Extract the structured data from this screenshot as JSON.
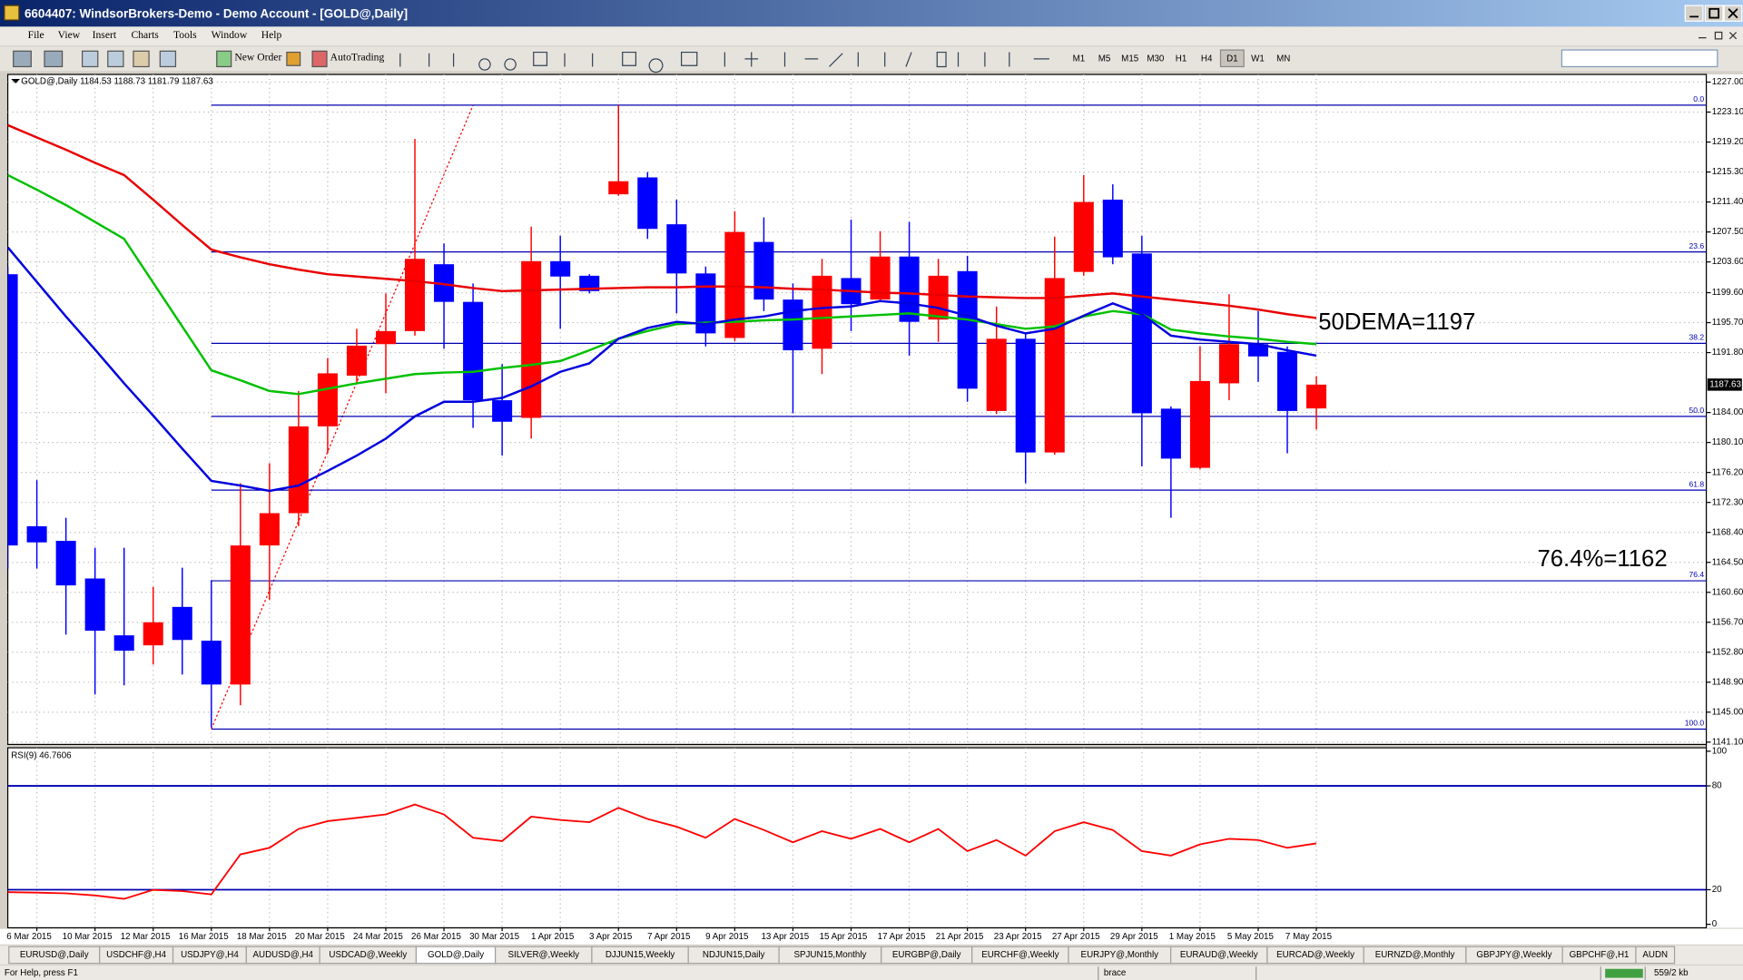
{
  "window": {
    "title": "6604407: WindsorBrokers-Demo - Demo Account - [GOLD@,Daily]"
  },
  "menu": [
    "File",
    "View",
    "Insert",
    "Charts",
    "Tools",
    "Window",
    "Help"
  ],
  "toolbar": {
    "new_order": "New Order",
    "autotrading": "AutoTrading",
    "timeframes": [
      {
        "label": "M1"
      },
      {
        "label": "M5"
      },
      {
        "label": "M15"
      },
      {
        "label": "M30"
      },
      {
        "label": "H1"
      },
      {
        "label": "H4"
      },
      {
        "label": "D1",
        "active": true
      },
      {
        "label": "W1"
      },
      {
        "label": "MN"
      }
    ]
  },
  "chart": {
    "type": "candlestick",
    "symbol": "GOLD@,Daily",
    "bull_color": "#ff0000",
    "bear_color": "#0000ff",
    "ylim": [
      1140.8,
      1228.0
    ],
    "yticks": [
      {
        "value": 1227.0,
        "label": "1227.00"
      },
      {
        "value": 1223.1,
        "label": "1223.10"
      },
      {
        "value": 1219.2,
        "label": "1219.20"
      },
      {
        "value": 1215.3,
        "label": "1215.30"
      },
      {
        "value": 1211.4,
        "label": "1211.40"
      },
      {
        "value": 1207.5,
        "label": "1207.50"
      },
      {
        "value": 1203.6,
        "label": "1203.60"
      },
      {
        "value": 1199.6,
        "label": "1199.60"
      },
      {
        "value": 1195.7,
        "label": "1195.70"
      },
      {
        "value": 1191.8,
        "label": "1191.80"
      },
      {
        "value": 1184.0,
        "label": "1184.00"
      },
      {
        "value": 1180.1,
        "label": "1180.10"
      },
      {
        "value": 1176.2,
        "label": "1176.20"
      },
      {
        "value": 1172.3,
        "label": "1172.30"
      },
      {
        "value": 1168.4,
        "label": "1168.40"
      },
      {
        "value": 1164.5,
        "label": "1164.50"
      },
      {
        "value": 1160.6,
        "label": "1160.60"
      },
      {
        "value": 1156.7,
        "label": "1156.70"
      },
      {
        "value": 1152.8,
        "label": "1152.80"
      },
      {
        "value": 1148.9,
        "label": "1148.90"
      },
      {
        "value": 1145.0,
        "label": "1145.00"
      },
      {
        "value": 1141.1,
        "label": "1141.10"
      }
    ],
    "grid": true,
    "date_labels": [
      "6 Mar 2015",
      "10 Mar 2015",
      "12 Mar 2015",
      "16 Mar 2015",
      "18 Mar 2015",
      "20 Mar 2015",
      "24 Mar 2015",
      "26 Mar 2015",
      "30 Mar 2015",
      "1 Apr 2015",
      "3 Apr 2015",
      "7 Apr 2015",
      "9 Apr 2015",
      "13 Apr 2015",
      "15 Apr 2015",
      "17 Apr 2015",
      "21 Apr 2015",
      "23 Apr 2015",
      "27 Apr 2015",
      "29 Apr 2015",
      "1 May 2015",
      "5 May 2015",
      "7 May 2015"
    ],
    "candles": [
      {
        "o": 1202.0,
        "h": 1203.0,
        "l": 1163.7,
        "c": 1166.7
      },
      {
        "o": 1169.2,
        "h": 1175.2,
        "l": 1163.7,
        "c": 1167.1
      },
      {
        "o": 1167.3,
        "h": 1170.3,
        "l": 1155.1,
        "c": 1161.5
      },
      {
        "o": 1162.4,
        "h": 1166.4,
        "l": 1147.3,
        "c": 1155.6
      },
      {
        "o": 1155.0,
        "h": 1166.4,
        "l": 1148.5,
        "c": 1153.0
      },
      {
        "o": 1153.7,
        "h": 1161.3,
        "l": 1151.2,
        "c": 1156.7
      },
      {
        "o": 1158.7,
        "h": 1163.8,
        "l": 1149.9,
        "c": 1154.4
      },
      {
        "o": 1154.3,
        "h": 1162.2,
        "l": 1143.0,
        "c": 1148.6
      },
      {
        "o": 1148.6,
        "h": 1174.8,
        "l": 1145.9,
        "c": 1166.7
      },
      {
        "o": 1166.7,
        "h": 1177.4,
        "l": 1159.6,
        "c": 1170.9
      },
      {
        "o": 1170.9,
        "h": 1186.8,
        "l": 1169.2,
        "c": 1182.2
      },
      {
        "o": 1182.2,
        "h": 1191.1,
        "l": 1178.7,
        "c": 1189.1
      },
      {
        "o": 1188.8,
        "h": 1194.9,
        "l": 1187.8,
        "c": 1192.7
      },
      {
        "o": 1192.9,
        "h": 1199.5,
        "l": 1186.5,
        "c": 1194.6
      },
      {
        "o": 1194.6,
        "h": 1219.6,
        "l": 1194.0,
        "c": 1204.0
      },
      {
        "o": 1203.3,
        "h": 1206.0,
        "l": 1192.3,
        "c": 1198.4
      },
      {
        "o": 1198.4,
        "h": 1200.8,
        "l": 1182.0,
        "c": 1185.6
      },
      {
        "o": 1185.6,
        "h": 1190.3,
        "l": 1178.4,
        "c": 1182.8
      },
      {
        "o": 1183.3,
        "h": 1208.2,
        "l": 1180.6,
        "c": 1203.7
      },
      {
        "o": 1203.7,
        "h": 1207.0,
        "l": 1194.9,
        "c": 1201.7
      },
      {
        "o": 1201.8,
        "h": 1202.0,
        "l": 1199.5,
        "c": 1199.8
      },
      {
        "o": 1212.4,
        "h": 1224.0,
        "l": 1212.2,
        "c": 1214.1
      },
      {
        "o": 1214.6,
        "h": 1215.3,
        "l": 1206.6,
        "c": 1207.9
      },
      {
        "o": 1208.5,
        "h": 1211.7,
        "l": 1196.9,
        "c": 1202.1
      },
      {
        "o": 1202.1,
        "h": 1203.0,
        "l": 1192.6,
        "c": 1194.3
      },
      {
        "o": 1193.7,
        "h": 1210.2,
        "l": 1193.3,
        "c": 1207.5
      },
      {
        "o": 1206.2,
        "h": 1209.4,
        "l": 1197.2,
        "c": 1198.7
      },
      {
        "o": 1198.7,
        "h": 1200.8,
        "l": 1183.9,
        "c": 1192.1
      },
      {
        "o": 1192.3,
        "h": 1204.0,
        "l": 1189.0,
        "c": 1201.8
      },
      {
        "o": 1201.5,
        "h": 1209.1,
        "l": 1194.6,
        "c": 1198.1
      },
      {
        "o": 1198.7,
        "h": 1207.6,
        "l": 1198.4,
        "c": 1204.3
      },
      {
        "o": 1204.3,
        "h": 1208.8,
        "l": 1191.4,
        "c": 1195.8
      },
      {
        "o": 1196.1,
        "h": 1204.0,
        "l": 1193.2,
        "c": 1201.8
      },
      {
        "o": 1202.4,
        "h": 1204.4,
        "l": 1185.4,
        "c": 1187.1
      },
      {
        "o": 1184.2,
        "h": 1197.8,
        "l": 1183.8,
        "c": 1193.6
      },
      {
        "o": 1193.6,
        "h": 1194.3,
        "l": 1174.8,
        "c": 1178.8
      },
      {
        "o": 1178.8,
        "h": 1206.9,
        "l": 1178.5,
        "c": 1201.5
      },
      {
        "o": 1202.3,
        "h": 1214.9,
        "l": 1201.8,
        "c": 1211.4
      },
      {
        "o": 1211.7,
        "h": 1213.7,
        "l": 1203.3,
        "c": 1204.2
      },
      {
        "o": 1204.7,
        "h": 1207.0,
        "l": 1177.0,
        "c": 1183.9
      },
      {
        "o": 1184.5,
        "h": 1184.8,
        "l": 1170.3,
        "c": 1178.0
      },
      {
        "o": 1176.8,
        "h": 1192.6,
        "l": 1176.6,
        "c": 1188.1
      },
      {
        "o": 1187.8,
        "h": 1199.4,
        "l": 1185.6,
        "c": 1192.9
      },
      {
        "o": 1192.9,
        "h": 1197.2,
        "l": 1188.0,
        "c": 1191.3
      },
      {
        "o": 1191.9,
        "h": 1192.6,
        "l": 1178.7,
        "c": 1184.2
      },
      {
        "o": 1184.53,
        "h": 1188.73,
        "l": 1181.79,
        "c": 1187.63
      }
    ],
    "moving_averages": [
      {
        "color": "#e80000",
        "values": [
          1221.4,
          1219.8,
          1218.2,
          1216.5,
          1214.9,
          1211.7,
          1208.4,
          1205.2,
          1204.2,
          1203.3,
          1202.6,
          1202.0,
          1201.7,
          1201.4,
          1201.1,
          1200.7,
          1200.2,
          1199.8,
          1199.9,
          1200.0,
          1200.1,
          1200.2,
          1200.3,
          1200.3,
          1200.4,
          1200.4,
          1200.3,
          1200.1,
          1200.0,
          1199.8,
          1199.6,
          1199.5,
          1199.3,
          1199.1,
          1199.0,
          1198.9,
          1198.9,
          1199.2,
          1199.5,
          1199.1,
          1198.7,
          1198.3,
          1197.9,
          1197.4,
          1196.8,
          1196.3
        ]
      },
      {
        "color": "#00c000",
        "values": [
          1214.9,
          1213.0,
          1211.0,
          1208.8,
          1206.6,
          1200.9,
          1195.2,
          1189.5,
          1188.2,
          1186.8,
          1186.4,
          1187.1,
          1187.8,
          1188.4,
          1189.0,
          1189.2,
          1189.3,
          1189.8,
          1190.2,
          1190.7,
          1192.1,
          1193.6,
          1194.6,
          1195.5,
          1195.7,
          1195.8,
          1196.0,
          1196.1,
          1196.3,
          1196.5,
          1196.7,
          1196.9,
          1196.5,
          1196.1,
          1195.5,
          1194.9,
          1195.2,
          1196.5,
          1197.2,
          1196.8,
          1194.8,
          1194.3,
          1193.9,
          1193.6,
          1193.2,
          1192.9
        ]
      },
      {
        "color": "#0000e0",
        "values": [
          1205.5,
          1201.0,
          1196.5,
          1192.2,
          1187.8,
          1183.6,
          1179.3,
          1175.1,
          1174.5,
          1173.8,
          1174.5,
          1176.4,
          1178.4,
          1180.6,
          1183.5,
          1185.4,
          1185.4,
          1185.9,
          1187.4,
          1189.3,
          1190.4,
          1193.6,
          1195.0,
          1195.8,
          1195.5,
          1196.1,
          1196.5,
          1197.2,
          1197.6,
          1197.8,
          1198.5,
          1198.2,
          1197.6,
          1196.6,
          1195.3,
          1194.3,
          1194.9,
          1196.6,
          1198.2,
          1196.8,
          1194.0,
          1193.5,
          1193.2,
          1192.9,
          1192.1,
          1191.4
        ]
      }
    ],
    "fibonacci": {
      "color": "#0000b0",
      "levels": [
        {
          "label": "0.0",
          "price": 1224.0
        },
        {
          "label": "23.6",
          "price": 1204.9
        },
        {
          "label": "38.2",
          "price": 1193.0
        },
        {
          "label": "50.0",
          "price": 1183.5
        },
        {
          "label": "61.8",
          "price": 1173.9
        },
        {
          "label": "76.4",
          "price": 1162.1
        },
        {
          "label": "100.0",
          "price": 1142.8
        }
      ]
    },
    "annotations": [
      "50DEMA=1197",
      "76.4%=1162"
    ]
  },
  "rsi": {
    "name": "RSI(9)",
    "color": "#ff0000",
    "level_color": "#0000b0",
    "ylim": [
      -2,
      102
    ],
    "yticks": [
      0,
      20,
      80,
      100
    ],
    "levels": [
      20,
      80
    ],
    "values": [
      18.6,
      18.3,
      17.9,
      16.7,
      14.7,
      19.9,
      19.2,
      17.3,
      40.4,
      44.2,
      55.1,
      59.6,
      61.5,
      63.5,
      69.2,
      63.5,
      50.0,
      48.1,
      62.2,
      60.3,
      59.0,
      67.3,
      60.9,
      56.4,
      50.0,
      60.9,
      54.5,
      47.4,
      53.8,
      49.4,
      55.1,
      47.4,
      55.1,
      42.3,
      48.7,
      39.7,
      53.8,
      59.0,
      54.5,
      42.3,
      39.7,
      46.2,
      49.4,
      48.7,
      44.2,
      46.7606
    ]
  },
  "tabs": [
    {
      "label": "EURUSD@,Daily"
    },
    {
      "label": "USDCHF@,H4"
    },
    {
      "label": "USDJPY@,H4"
    },
    {
      "label": "AUDUSD@,H4"
    },
    {
      "label": "USDCAD@,Weekly"
    },
    {
      "label": "GOLD@,Daily",
      "active": true
    },
    {
      "label": "SILVER@,Weekly"
    },
    {
      "label": "DJJUN15,Weekly"
    },
    {
      "label": "NDJUN15,Daily"
    },
    {
      "label": "SPJUN15,Monthly"
    },
    {
      "label": "EURGBP@,Daily"
    },
    {
      "label": "EURCHF@,Weekly"
    },
    {
      "label": "EURJPY@,Monthly"
    },
    {
      "label": "EURAUD@,Weekly"
    },
    {
      "label": "EURCAD@,Weekly"
    },
    {
      "label": "EURNZD@,Monthly"
    },
    {
      "label": "GBPJPY@,Weekly"
    },
    {
      "label": "GBPCHF@,H1"
    },
    {
      "label": "AUDN"
    }
  ],
  "status": {
    "help": "For Help, press F1",
    "profile": "brace",
    "traffic": "559/2 kb"
  }
}
